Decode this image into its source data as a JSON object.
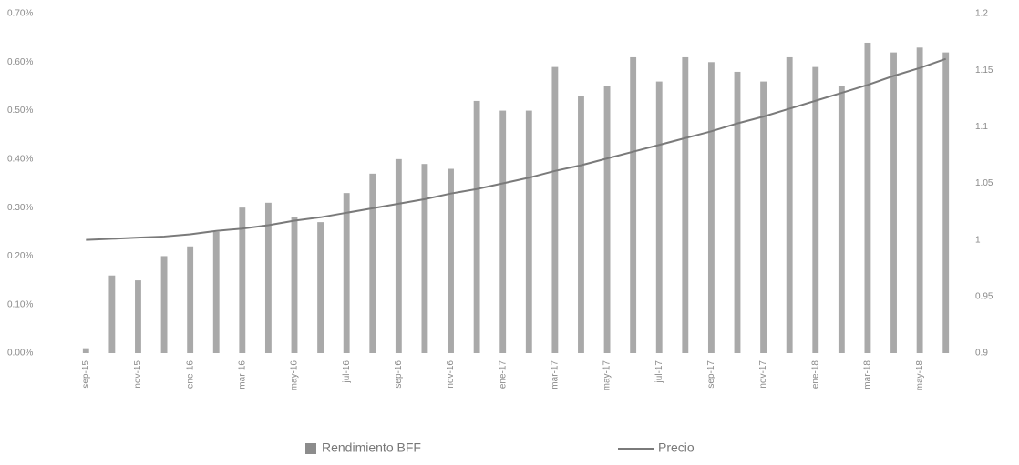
{
  "chart_data": {
    "type": "bar",
    "categories": [
      "sep-15",
      null,
      "nov-15",
      null,
      "ene-16",
      null,
      "mar-16",
      null,
      "may-16",
      null,
      "jul-16",
      null,
      "sep-16",
      null,
      "nov-16",
      null,
      "ene-17",
      null,
      "mar-17",
      null,
      "may-17",
      null,
      "jul-17",
      null,
      "sep-17",
      null,
      "nov-17",
      null,
      "ene-18",
      null,
      "mar-18",
      null,
      "may-18",
      null
    ],
    "series": [
      {
        "name": "Rendimiento BFF",
        "color": "#8c8c8c",
        "values": [
          0.01,
          0.16,
          0.15,
          0.2,
          0.22,
          0.25,
          0.3,
          0.31,
          0.28,
          0.27,
          0.33,
          0.37,
          0.4,
          0.39,
          0.38,
          0.52,
          0.5,
          0.5,
          0.59,
          0.53,
          0.55,
          0.61,
          0.56,
          0.61,
          0.6,
          0.58,
          0.56,
          0.61,
          0.59,
          0.55,
          0.64,
          0.62,
          0.63,
          0.62
        ]
      },
      {
        "name": "Precio",
        "type": "line",
        "axis": "y2",
        "color": "#7a7a7a",
        "values": [
          1.0,
          1.001,
          1.002,
          1.003,
          1.005,
          1.008,
          1.01,
          1.013,
          1.017,
          1.02,
          1.024,
          1.028,
          1.032,
          1.036,
          1.041,
          1.045,
          1.05,
          1.055,
          1.061,
          1.066,
          1.072,
          1.078,
          1.084,
          1.09,
          1.096,
          1.103,
          1.109,
          1.116,
          1.123,
          1.13,
          1.137,
          1.145,
          1.152,
          1.16
        ]
      }
    ],
    "ylim": [
      0,
      0.7
    ],
    "yticks": [
      {
        "value": 0,
        "label": "0.00%"
      },
      {
        "value": 0.1,
        "label": "0.10%"
      },
      {
        "value": 0.2,
        "label": "0.20%"
      },
      {
        "value": 0.3,
        "label": "0.30%"
      },
      {
        "value": 0.4,
        "label": "0.40%"
      },
      {
        "value": 0.5,
        "label": "0.50%"
      },
      {
        "value": 0.6,
        "label": "0.60%"
      },
      {
        "value": 0.7,
        "label": "0.70%"
      }
    ],
    "y2lim": [
      0.9,
      1.2
    ],
    "y2ticks": [
      0.9,
      0.95,
      1,
      1.05,
      1.1,
      1.15,
      1.2
    ],
    "legend": "bottom"
  }
}
